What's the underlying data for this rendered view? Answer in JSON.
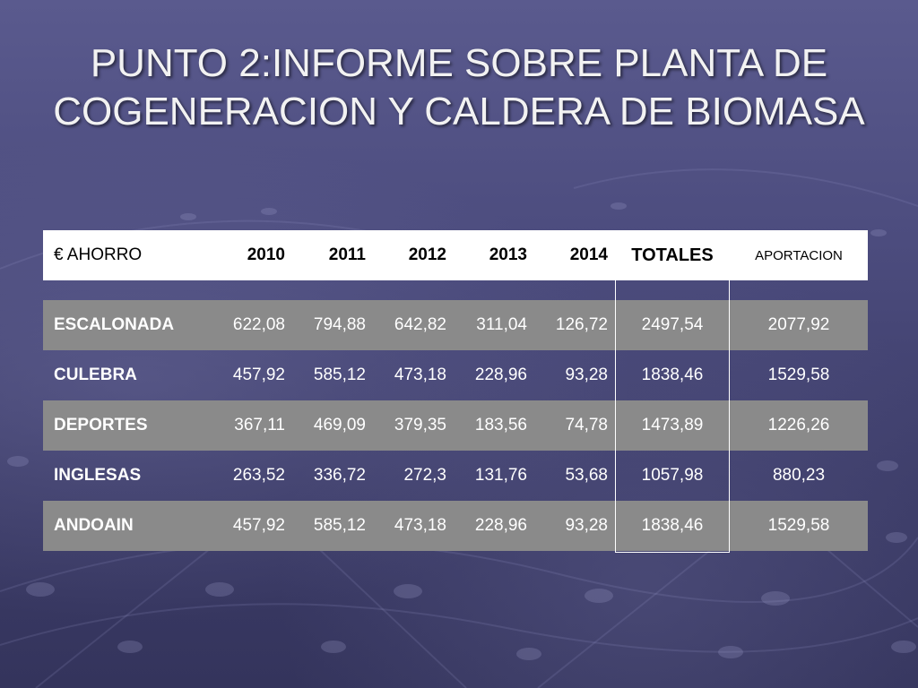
{
  "title": {
    "line1": "PUNTO 2:INFORME SOBRE PLANTA DE",
    "line2": "COGENERACION Y CALDERA DE BIOMASA"
  },
  "table": {
    "headers": [
      "€ AHORRO",
      "2010",
      "2011",
      "2012",
      "2013",
      "2014",
      "TOTALES",
      "APORTACION"
    ],
    "rows": [
      {
        "name": "ESCALONADA",
        "values": [
          "622,08",
          "794,88",
          "642,82",
          "311,04",
          "126,72"
        ],
        "total": "2497,54",
        "aportacion": "2077,92"
      },
      {
        "name": "CULEBRA",
        "values": [
          "457,92",
          "585,12",
          "473,18",
          "228,96",
          "93,28"
        ],
        "total": "1838,46",
        "aportacion": "1529,58"
      },
      {
        "name": "DEPORTES",
        "values": [
          "367,11",
          "469,09",
          "379,35",
          "183,56",
          "74,78"
        ],
        "total": "1473,89",
        "aportacion": "1226,26"
      },
      {
        "name": "INGLESAS",
        "values": [
          "263,52",
          "336,72",
          "272,3",
          "131,76",
          "53,68"
        ],
        "total": "1057,98",
        "aportacion": "880,23"
      },
      {
        "name": "ANDOAIN",
        "values": [
          "457,92",
          "585,12",
          "473,18",
          "228,96",
          "93,28"
        ],
        "total": "1838,46",
        "aportacion": "1529,58"
      }
    ]
  },
  "colors": {
    "background": "#4c4c7e",
    "header_bg": "#ffffff",
    "shaded_row": "#8a8a8a",
    "title_text": "#f2f2f2"
  }
}
